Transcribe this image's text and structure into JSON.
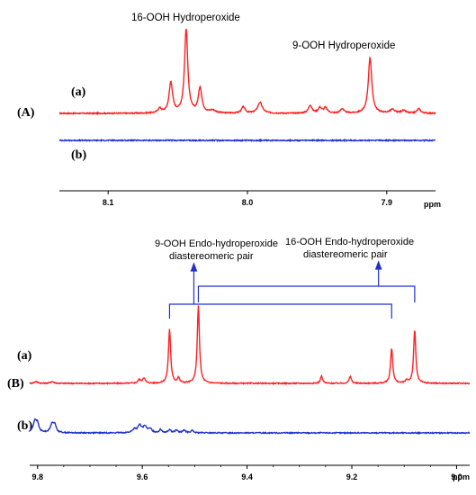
{
  "chart_data": [
    {
      "type": "line",
      "panel_label": "(A)",
      "xunit": "ppm",
      "xlim": [
        8.135,
        7.865
      ],
      "xticks": [
        8.1,
        8.0,
        7.9
      ],
      "xtick_labels": [
        "8.1",
        "8.0",
        "7.9"
      ],
      "grid": false,
      "series": [
        {
          "name": "(a)",
          "color": "#ff2020",
          "baseline_offset": 0,
          "peaks": [
            {
              "x": 8.063,
              "h": 0.05,
              "w": 0.0015
            },
            {
              "x": 8.055,
              "h": 0.34,
              "w": 0.0015
            },
            {
              "x": 8.044,
              "h": 0.93,
              "w": 0.0014
            },
            {
              "x": 8.034,
              "h": 0.28,
              "w": 0.0015
            },
            {
              "x": 8.025,
              "h": 0.03,
              "w": 0.0025
            },
            {
              "x": 8.003,
              "h": 0.07,
              "w": 0.0015
            },
            {
              "x": 7.991,
              "h": 0.12,
              "w": 0.002
            },
            {
              "x": 7.955,
              "h": 0.09,
              "w": 0.0015
            },
            {
              "x": 7.948,
              "h": 0.06,
              "w": 0.0015
            },
            {
              "x": 7.944,
              "h": 0.06,
              "w": 0.0015
            },
            {
              "x": 7.932,
              "h": 0.05,
              "w": 0.0015
            },
            {
              "x": 7.912,
              "h": 0.62,
              "w": 0.0015
            },
            {
              "x": 7.896,
              "h": 0.04,
              "w": 0.002
            },
            {
              "x": 7.888,
              "h": 0.03,
              "w": 0.002
            },
            {
              "x": 7.877,
              "h": 0.05,
              "w": 0.0015
            }
          ]
        },
        {
          "name": "(b)",
          "color": "#2030d0",
          "baseline_offset": -0.3,
          "peaks": []
        }
      ],
      "annotations": [
        {
          "text": "16-OOH Hydroperoxide",
          "x": 8.044
        },
        {
          "text": "9-OOH Hydroperoxide",
          "x": 7.912
        }
      ]
    },
    {
      "type": "line",
      "panel_label": "(B)",
      "xunit": "ppm",
      "xlim": [
        9.815,
        8.975
      ],
      "xticks": [
        9.8,
        9.6,
        9.4,
        9.2,
        9.0
      ],
      "xtick_labels": [
        "9.8",
        "9.6",
        "9.4",
        "9.2",
        "9.0"
      ],
      "grid": false,
      "series": [
        {
          "name": "(a)",
          "color": "#ff2020",
          "baseline_offset": 0,
          "peaks": [
            {
              "x": 9.803,
              "h": 0.02,
              "w": 0.004
            },
            {
              "x": 9.772,
              "h": 0.02,
              "w": 0.004
            },
            {
              "x": 9.606,
              "h": 0.04,
              "w": 0.003
            },
            {
              "x": 9.597,
              "h": 0.06,
              "w": 0.003
            },
            {
              "x": 9.548,
              "h": 0.6,
              "w": 0.0025
            },
            {
              "x": 9.531,
              "h": 0.06,
              "w": 0.0025
            },
            {
              "x": 9.493,
              "h": 0.86,
              "w": 0.0025
            },
            {
              "x": 9.258,
              "h": 0.08,
              "w": 0.0025
            },
            {
              "x": 9.203,
              "h": 0.08,
              "w": 0.0025
            },
            {
              "x": 9.124,
              "h": 0.39,
              "w": 0.0025
            },
            {
              "x": 9.095,
              "h": 0.03,
              "w": 0.003
            },
            {
              "x": 9.08,
              "h": 0.59,
              "w": 0.0025
            }
          ]
        },
        {
          "name": "(b)",
          "color": "#2030d0",
          "baseline_offset": -0.55,
          "peaks": [
            {
              "x": 9.805,
              "h": 0.13,
              "w": 0.004
            },
            {
              "x": 9.8,
              "h": 0.08,
              "w": 0.003
            },
            {
              "x": 9.772,
              "h": 0.1,
              "w": 0.004
            },
            {
              "x": 9.767,
              "h": 0.07,
              "w": 0.003
            },
            {
              "x": 9.615,
              "h": 0.04,
              "w": 0.004
            },
            {
              "x": 9.605,
              "h": 0.08,
              "w": 0.004
            },
            {
              "x": 9.595,
              "h": 0.07,
              "w": 0.004
            },
            {
              "x": 9.585,
              "h": 0.04,
              "w": 0.004
            },
            {
              "x": 9.565,
              "h": 0.035,
              "w": 0.003
            },
            {
              "x": 9.548,
              "h": 0.035,
              "w": 0.003
            },
            {
              "x": 9.535,
              "h": 0.03,
              "w": 0.003
            },
            {
              "x": 9.52,
              "h": 0.03,
              "w": 0.003
            },
            {
              "x": 9.505,
              "h": 0.025,
              "w": 0.003
            }
          ]
        }
      ],
      "annotations": [
        {
          "text": "9-OOH Endo-hydroperoxide",
          "text2": "diastereomeric pair",
          "pair": [
            9.548,
            9.493
          ]
        },
        {
          "text": "16-OOH Endo-hydroperoxide",
          "text2": "diastereomeric pair",
          "pair": [
            9.124,
            9.08
          ]
        }
      ]
    }
  ]
}
